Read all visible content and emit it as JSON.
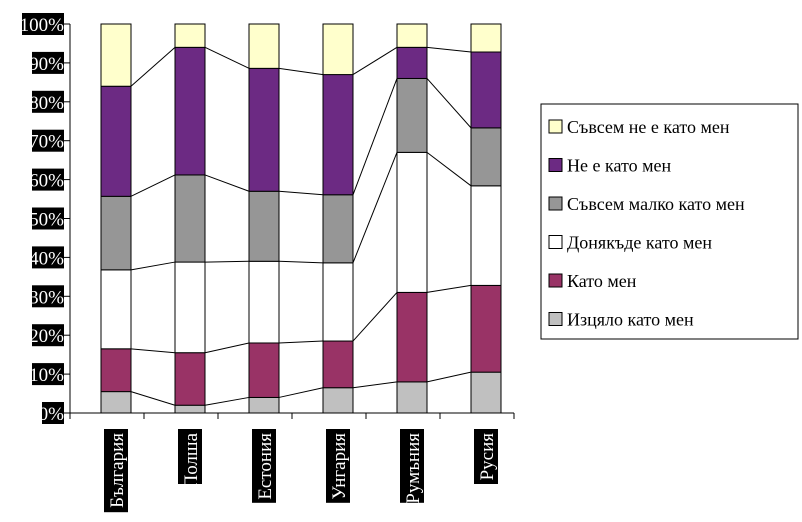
{
  "chart_data": {
    "type": "bar",
    "stacked": true,
    "percent": true,
    "categories": [
      "България",
      "Полша",
      "Естония",
      "Унгария",
      "Румъния",
      "Русия"
    ],
    "yticks": [
      "0%",
      "10%",
      "20%",
      "30%",
      "40%",
      "50%",
      "60%",
      "70%",
      "80%",
      "90%",
      "100%"
    ],
    "ylim": [
      0,
      100
    ],
    "legend_position": "right",
    "connector_lines": true,
    "series": [
      {
        "name": "Изцяло като мен",
        "color": "#c0c0c0",
        "values": [
          5.5,
          2,
          4,
          6.5,
          8,
          10.5
        ]
      },
      {
        "name": "Като мен",
        "color": "#993366",
        "values": [
          11,
          13.5,
          14,
          12,
          23,
          22.3
        ]
      },
      {
        "name": "Донякъде като мен",
        "color": "#ffffff",
        "values": [
          20.3,
          23.3,
          21,
          20.1,
          36,
          25.6
        ]
      },
      {
        "name": "Съвсем малко като мен",
        "color": "#969696",
        "values": [
          18.9,
          22.4,
          18,
          17.5,
          19,
          14.9
        ]
      },
      {
        "name": "Не е като мен",
        "color": "#6c2a83",
        "values": [
          28.3,
          32.8,
          31.6,
          30.9,
          8,
          19.5
        ]
      },
      {
        "name": "Съвсем не е като мен",
        "color": "#ffffcc",
        "values": [
          16,
          6,
          11.4,
          13,
          6,
          7.2
        ]
      }
    ]
  }
}
